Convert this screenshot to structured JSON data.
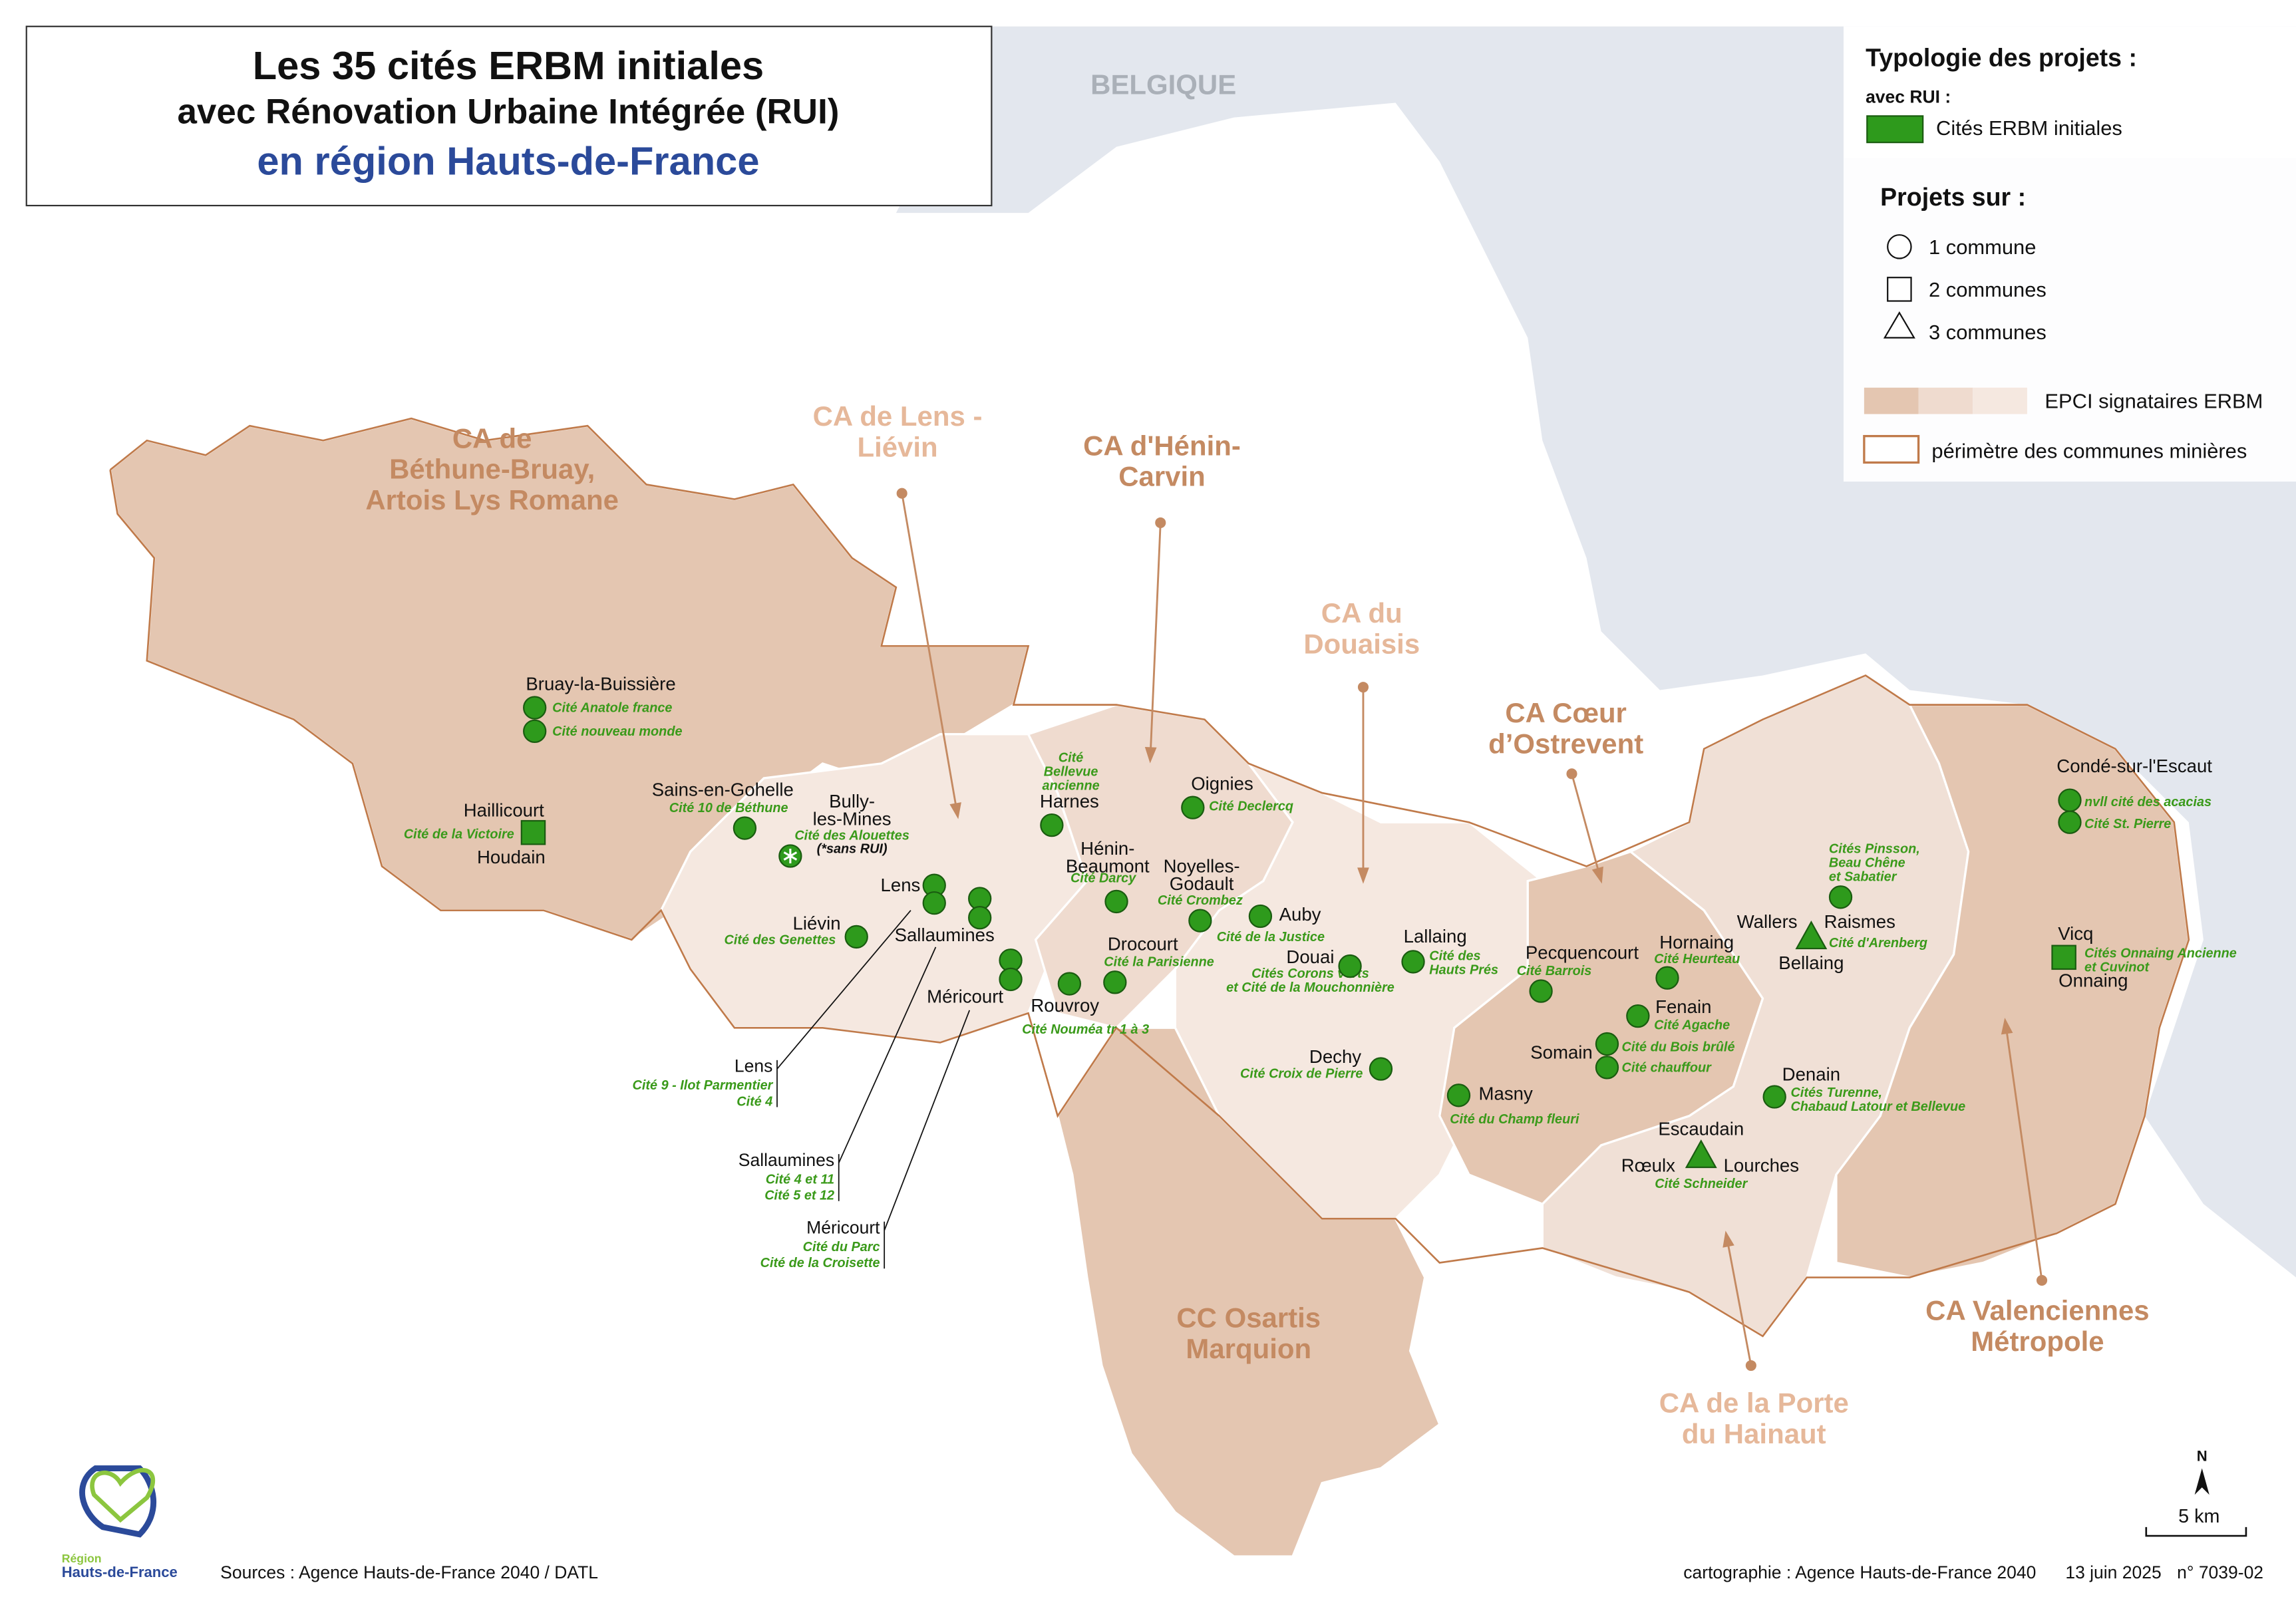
{
  "title": {
    "lines": [
      "Les 35 cités ERBM initiales",
      "avec Rénovation Urbaine Intégrée (RUI)",
      "en région Hauts-de-France"
    ]
  },
  "legend": {
    "heading": "Typologie des projets :",
    "rui_label": "avec RUI :",
    "rui_item": "Cités ERBM initiales",
    "projects_heading": "Projets sur :",
    "shapes": [
      "1 commune",
      "2 communes",
      "3 communes"
    ],
    "epci": "EPCI signataires ERBM",
    "perimeter": "périmètre des communes minières"
  },
  "country": "BELGIQUE",
  "epci": [
    {
      "lines": [
        "CA de",
        "Béthune-Bruay,",
        "Artois Lys Romane"
      ]
    },
    {
      "lines": [
        "CA de Lens -",
        "Liévin"
      ]
    },
    {
      "lines": [
        "CA d'Hénin-",
        "Carvin"
      ]
    },
    {
      "lines": [
        "CA du",
        "Douaisis"
      ]
    },
    {
      "lines": [
        "CA Cœur",
        "d’Ostrevent"
      ]
    },
    {
      "lines": [
        "CC Osartis",
        "Marquion"
      ]
    },
    {
      "lines": [
        "CA Valenciennes",
        "Métropole"
      ]
    },
    {
      "lines": [
        "CA de la Porte",
        "du Hainaut"
      ]
    }
  ],
  "communes": [
    [
      "Bruay-la-Buissière"
    ],
    [
      "Haillicourt"
    ],
    [
      "Houdain"
    ],
    [
      "Sains-en-Gohelle"
    ],
    [
      "Bully-",
      "les-Mines"
    ],
    [
      "Lens"
    ],
    [
      "Liévin"
    ],
    [
      "Sallaumines"
    ],
    [
      "Méricourt"
    ],
    [
      "Harnes"
    ],
    [
      "Hénin-",
      "Beaumont"
    ],
    [
      "Oignies"
    ],
    [
      "Noyelles-",
      "Godault"
    ],
    [
      "Auby"
    ],
    [
      "Drocourt"
    ],
    [
      "Rouvroy"
    ],
    [
      "Douai"
    ],
    [
      "Lallaing"
    ],
    [
      "Dechy"
    ],
    [
      "Pecquencourt"
    ],
    [
      "Hornaing"
    ],
    [
      "Fenain"
    ],
    [
      "Somain"
    ],
    [
      "Masny"
    ],
    [
      "Escaudain"
    ],
    [
      "Rœulx"
    ],
    [
      "Lourches"
    ],
    [
      "Denain"
    ],
    [
      "Wallers"
    ],
    [
      "Raismes"
    ],
    [
      "Bellaing"
    ],
    [
      "Condé-sur-l'Escaut"
    ],
    [
      "Vicq"
    ],
    [
      "Onnaing"
    ]
  ],
  "cites": [
    [
      "Cité Anatole france"
    ],
    [
      "Cité nouveau monde"
    ],
    [
      "Cité 10 de Béthune"
    ],
    [
      "Cité de la Victoire"
    ],
    [
      "Cité des Alouettes"
    ],
    [
      "Cité des Genettes"
    ],
    [
      "Cité",
      "Bellevue",
      "ancienne"
    ],
    [
      "Cité Darcy"
    ],
    [
      "Cité Declercq"
    ],
    [
      "Cité Crombez"
    ],
    [
      "Cité de la Justice"
    ],
    [
      "Cité la Parisienne"
    ],
    [
      "Cité Nouméa tr 1 à 3"
    ],
    [
      "Cités Corons verts",
      "et Cité de la Mouchonnière"
    ],
    [
      "Cité des",
      "Hauts Prés"
    ],
    [
      "Cité Barrois"
    ],
    [
      "Cité Heurteau"
    ],
    [
      "Cité Agache"
    ],
    [
      "Cité du Bois brûlé"
    ],
    [
      "Cité chauffour"
    ],
    [
      "Cité Croix de Pierre"
    ],
    [
      "Cité du Champ fleuri"
    ],
    [
      "Cité Schneider"
    ],
    [
      "Cités Turenne,",
      "Chabaud Latour et Bellevue"
    ],
    [
      "Cités Pinsson,",
      "Beau Chêne",
      "et Sabatier"
    ],
    [
      "Cité d'Arenberg"
    ],
    [
      "nvll cité des acacias"
    ],
    [
      "Cité St. Pierre"
    ],
    [
      "Cités Onnaing Ancienne",
      "et Cuvinot"
    ]
  ],
  "note": "(*sans RUI)",
  "callouts": [
    {
      "commune": "Lens",
      "cites": [
        "Cité 9 - Ilot Parmentier",
        "Cité 4"
      ]
    },
    {
      "commune": "Sallaumines",
      "cites": [
        "Cité 4 et 11",
        "Cité 5 et 12"
      ]
    },
    {
      "commune": "Méricourt",
      "cites": [
        "Cité du Parc",
        "Cité de la Croisette"
      ]
    }
  ],
  "footer": {
    "sources": "Sources : Agence Hauts-de-France 2040 / DATL",
    "credits": "cartographie : Agence Hauts-de-France 2040",
    "date": "13 juin 2025",
    "ref": "n° 7039-02"
  },
  "scale": {
    "label": "5 km",
    "north": "N"
  },
  "logo": [
    "Région",
    "Hauts-de-France"
  ]
}
